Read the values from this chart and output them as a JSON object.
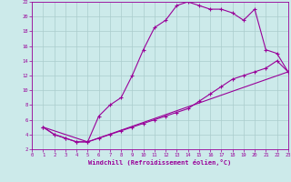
{
  "bg_color": "#cceaea",
  "line_color": "#990099",
  "grid_color": "#aacccc",
  "xlabel": "Windchill (Refroidissement éolien,°C)",
  "xlim": [
    0,
    23
  ],
  "ylim": [
    2,
    22
  ],
  "xticks": [
    0,
    1,
    2,
    3,
    4,
    5,
    6,
    7,
    8,
    9,
    10,
    11,
    12,
    13,
    14,
    15,
    16,
    17,
    18,
    19,
    20,
    21,
    22,
    23
  ],
  "yticks": [
    2,
    4,
    6,
    8,
    10,
    12,
    14,
    16,
    18,
    20,
    22
  ],
  "line1_x": [
    1,
    2,
    3,
    4,
    5,
    6,
    7,
    8,
    9,
    10,
    11,
    12,
    13,
    14,
    15,
    16,
    17,
    18,
    19,
    20,
    21,
    22,
    23
  ],
  "line1_y": [
    5,
    4,
    3.5,
    3.0,
    3.0,
    6.5,
    8.0,
    9.0,
    12.0,
    15.5,
    18.5,
    19.5,
    21.5,
    22.0,
    21.5,
    21.0,
    21.0,
    20.5,
    19.5,
    21.0,
    15.5,
    15.0,
    12.5
  ],
  "line2_x": [
    1,
    2,
    3,
    4,
    5,
    6,
    7,
    8,
    9,
    10,
    11,
    12,
    13,
    14,
    15,
    16,
    17,
    18,
    19,
    20,
    21,
    22,
    23
  ],
  "line2_y": [
    5,
    4,
    3.5,
    3.0,
    3.0,
    3.5,
    4.0,
    4.5,
    5.0,
    5.5,
    6.0,
    6.5,
    7.0,
    7.5,
    8.5,
    9.5,
    10.5,
    11.5,
    12.0,
    12.5,
    13.0,
    14.0,
    12.5
  ],
  "line3_x": [
    1,
    5,
    23
  ],
  "line3_y": [
    5.0,
    3.0,
    12.5
  ]
}
